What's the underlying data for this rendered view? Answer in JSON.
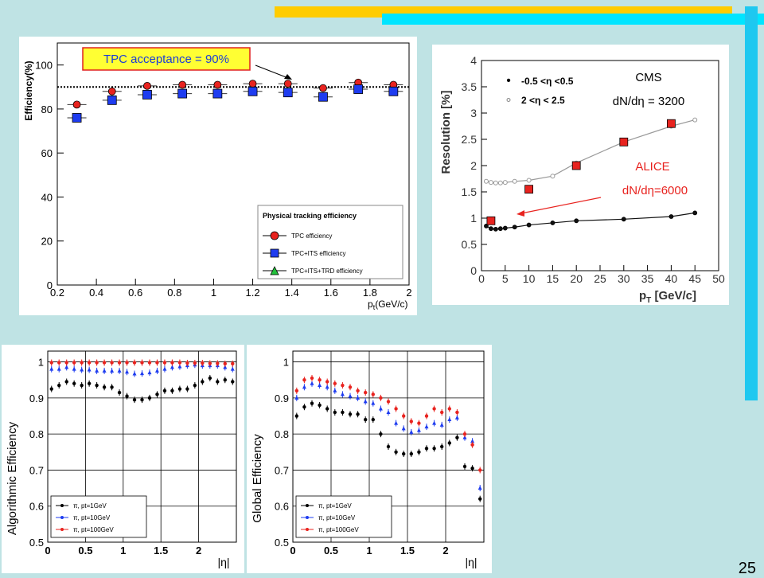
{
  "slide": {
    "page_number": "25",
    "colors": {
      "background": "#bfe3e4",
      "bar_yellow": "#ffcc00",
      "bar_cyan": "#00e5ff",
      "bar_blue": "#1ec8f0"
    }
  },
  "chart_data": [
    {
      "id": "tpc",
      "type": "scatter",
      "title": "",
      "xlabel": "p",
      "xlabel_sub": "t",
      "xlabel_unit": "(GeV/c)",
      "ylabel": "Efficiency(%)",
      "xlim": [
        0.2,
        2.0
      ],
      "ylim": [
        0,
        110
      ],
      "xticks": [
        "0.2",
        "0.4",
        "0.6",
        "0.8",
        "1",
        "1.2",
        "1.4",
        "1.6",
        "1.8",
        "2"
      ],
      "yticks": [
        "0",
        "20",
        "40",
        "60",
        "80",
        "100"
      ],
      "annotation": "TPC acceptance = 90%",
      "reference_line": 90,
      "legend_title": "Physical tracking efficiency",
      "series": [
        {
          "name": "TPC efficiency",
          "marker": "circle",
          "color": "#e8231f",
          "x": [
            0.3,
            0.48,
            0.66,
            0.84,
            1.02,
            1.2,
            1.38,
            1.56,
            1.74,
            1.92
          ],
          "y": [
            82,
            88,
            90.5,
            91,
            91,
            91.5,
            91.5,
            89.5,
            92,
            91
          ]
        },
        {
          "name": "TPC+ITS efficiency",
          "marker": "square",
          "color": "#1e3cf0",
          "x": [
            0.3,
            0.48,
            0.66,
            0.84,
            1.02,
            1.2,
            1.38,
            1.56,
            1.74,
            1.92
          ],
          "y": [
            76,
            84,
            86.5,
            87,
            87,
            88,
            87.5,
            85.5,
            89,
            88
          ]
        },
        {
          "name": "TPC+ITS+TRD efficiency",
          "marker": "triangle",
          "color": "#22c03a",
          "x": [],
          "y": []
        }
      ]
    },
    {
      "id": "resolution",
      "type": "line",
      "title": "",
      "xlabel": "p",
      "xlabel_sub": "T",
      "xlabel_unit": "[GeV/c]",
      "ylabel": "Resolution [%]",
      "xlim": [
        0,
        50
      ],
      "ylim": [
        0,
        4
      ],
      "xticks": [
        "0",
        "5",
        "10",
        "15",
        "20",
        "25",
        "30",
        "35",
        "40",
        "45",
        "50"
      ],
      "yticks": [
        "0",
        "0.5",
        "1",
        "1.5",
        "2",
        "2.5",
        "3",
        "3.5",
        "4"
      ],
      "legend": [
        {
          "marker": "•",
          "text": "-0.5 <η <0.5"
        },
        {
          "marker": "∘",
          "text": "2   <η < 2.5"
        }
      ],
      "annotations": {
        "cms": "CMS",
        "cms_mult": "dN/dη  = 3200",
        "alice": "ALICE",
        "alice_mult": "dN/dη=6000"
      },
      "series": [
        {
          "name": "",
          "color": "#111111",
          "marker": "circle",
          "x": [
            1,
            2,
            3,
            4,
            5,
            7,
            10,
            15,
            20,
            30,
            40,
            45
          ],
          "y": [
            0.85,
            0.8,
            0.79,
            0.8,
            0.81,
            0.83,
            0.87,
            0.91,
            0.95,
            0.98,
            1.03,
            1.1
          ]
        },
        {
          "name": "",
          "color": "#999999",
          "marker": "open-circle",
          "x": [
            1,
            2,
            3,
            4,
            5,
            7,
            10,
            15,
            20,
            30,
            40,
            45
          ],
          "y": [
            1.7,
            1.68,
            1.67,
            1.67,
            1.68,
            1.7,
            1.72,
            1.8,
            2.05,
            2.45,
            2.75,
            2.87
          ]
        },
        {
          "name": "ALICE",
          "color": "#e8231f",
          "marker": "square",
          "x": [
            2,
            10,
            20,
            30,
            40
          ],
          "y": [
            0.95,
            1.55,
            2.0,
            2.45,
            2.8
          ]
        }
      ]
    },
    {
      "id": "algo",
      "type": "scatter",
      "title": "",
      "xlabel": "|η|",
      "ylabel": "Algorithmic Efficiency",
      "xlim": [
        0,
        2.5
      ],
      "ylim": [
        0.5,
        1.03
      ],
      "xticks": [
        "0",
        "0.5",
        "1",
        "1.5",
        "2"
      ],
      "yticks": [
        "0.5",
        "0.6",
        "0.7",
        "0.8",
        "0.9",
        "1"
      ],
      "series": [
        {
          "name": "π, pt=1GeV",
          "color": "#000000",
          "x": [
            0.05,
            0.15,
            0.25,
            0.35,
            0.45,
            0.55,
            0.65,
            0.75,
            0.85,
            0.95,
            1.05,
            1.15,
            1.25,
            1.35,
            1.45,
            1.55,
            1.65,
            1.75,
            1.85,
            1.95,
            2.05,
            2.15,
            2.25,
            2.35,
            2.45
          ],
          "y": [
            0.925,
            0.935,
            0.945,
            0.94,
            0.935,
            0.94,
            0.935,
            0.93,
            0.93,
            0.915,
            0.905,
            0.895,
            0.895,
            0.9,
            0.91,
            0.92,
            0.92,
            0.925,
            0.925,
            0.935,
            0.945,
            0.955,
            0.945,
            0.95,
            0.945
          ]
        },
        {
          "name": "π, pt=10GeV",
          "color": "#1e3cf0",
          "x": [
            0.05,
            0.15,
            0.25,
            0.35,
            0.45,
            0.55,
            0.65,
            0.75,
            0.85,
            0.95,
            1.05,
            1.15,
            1.25,
            1.35,
            1.45,
            1.55,
            1.65,
            1.75,
            1.85,
            1.95,
            2.05,
            2.15,
            2.25,
            2.35,
            2.45
          ],
          "y": [
            0.98,
            0.98,
            0.985,
            0.98,
            0.978,
            0.978,
            0.975,
            0.975,
            0.975,
            0.975,
            0.972,
            0.967,
            0.968,
            0.97,
            0.975,
            0.98,
            0.985,
            0.987,
            0.99,
            0.992,
            0.99,
            0.99,
            0.99,
            0.985,
            0.98
          ]
        },
        {
          "name": "π, pt=100GeV",
          "color": "#e8231f",
          "x": [
            0.05,
            0.15,
            0.25,
            0.35,
            0.45,
            0.55,
            0.65,
            0.75,
            0.85,
            0.95,
            1.05,
            1.15,
            1.25,
            1.35,
            1.45,
            1.55,
            1.65,
            1.75,
            1.85,
            1.95,
            2.05,
            2.15,
            2.25,
            2.35,
            2.45
          ],
          "y": [
            0.998,
            0.998,
            0.998,
            0.998,
            0.998,
            0.998,
            0.998,
            0.998,
            0.998,
            0.998,
            0.998,
            0.998,
            0.998,
            0.998,
            0.998,
            0.998,
            0.998,
            0.998,
            0.997,
            0.997,
            0.997,
            0.996,
            0.996,
            0.995,
            0.995
          ]
        }
      ]
    },
    {
      "id": "global",
      "type": "scatter",
      "title": "",
      "xlabel": "|η|",
      "ylabel": "Global Efficiency",
      "xlim": [
        0,
        2.5
      ],
      "ylim": [
        0.5,
        1.03
      ],
      "xticks": [
        "0",
        "0.5",
        "1",
        "1.5",
        "2"
      ],
      "yticks": [
        "0.5",
        "0.6",
        "0.7",
        "0.8",
        "0.9",
        "1"
      ],
      "series": [
        {
          "name": "π, pt=1GeV",
          "color": "#000000",
          "x": [
            0.05,
            0.15,
            0.25,
            0.35,
            0.45,
            0.55,
            0.65,
            0.75,
            0.85,
            0.95,
            1.05,
            1.15,
            1.25,
            1.35,
            1.45,
            1.55,
            1.65,
            1.75,
            1.85,
            1.95,
            2.05,
            2.15,
            2.25,
            2.35,
            2.45
          ],
          "y": [
            0.85,
            0.875,
            0.885,
            0.88,
            0.87,
            0.86,
            0.86,
            0.855,
            0.855,
            0.84,
            0.84,
            0.8,
            0.765,
            0.75,
            0.745,
            0.745,
            0.75,
            0.76,
            0.76,
            0.765,
            0.775,
            0.79,
            0.71,
            0.705,
            0.62
          ]
        },
        {
          "name": "π, pt=10GeV",
          "color": "#1e3cf0",
          "x": [
            0.05,
            0.15,
            0.25,
            0.35,
            0.45,
            0.55,
            0.65,
            0.75,
            0.85,
            0.95,
            1.05,
            1.15,
            1.25,
            1.35,
            1.45,
            1.55,
            1.65,
            1.75,
            1.85,
            1.95,
            2.05,
            2.15,
            2.25,
            2.35,
            2.45
          ],
          "y": [
            0.9,
            0.93,
            0.94,
            0.935,
            0.93,
            0.92,
            0.91,
            0.905,
            0.9,
            0.89,
            0.885,
            0.87,
            0.86,
            0.83,
            0.815,
            0.805,
            0.81,
            0.82,
            0.83,
            0.825,
            0.84,
            0.845,
            0.79,
            0.78,
            0.65
          ]
        },
        {
          "name": "π, pt=100GeV",
          "color": "#e8231f",
          "x": [
            0.05,
            0.15,
            0.25,
            0.35,
            0.45,
            0.55,
            0.65,
            0.75,
            0.85,
            0.95,
            1.05,
            1.15,
            1.25,
            1.35,
            1.45,
            1.55,
            1.65,
            1.75,
            1.85,
            1.95,
            2.05,
            2.15,
            2.25,
            2.35,
            2.45
          ],
          "y": [
            0.92,
            0.95,
            0.955,
            0.95,
            0.945,
            0.94,
            0.935,
            0.93,
            0.92,
            0.915,
            0.91,
            0.9,
            0.89,
            0.87,
            0.85,
            0.835,
            0.83,
            0.85,
            0.87,
            0.86,
            0.87,
            0.86,
            0.8,
            0.77,
            0.7
          ]
        }
      ]
    }
  ]
}
